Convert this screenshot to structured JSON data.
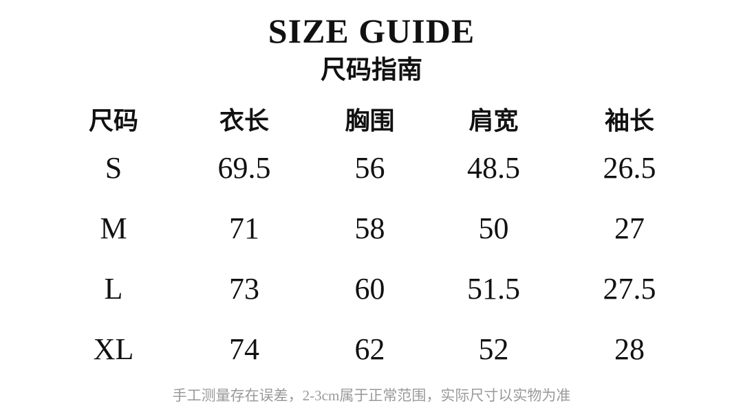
{
  "chart_data": {
    "type": "table",
    "title": "SIZE GUIDE",
    "subtitle": "尺码指南",
    "columns": [
      "尺码",
      "衣长",
      "胸围",
      "肩宽",
      "袖长"
    ],
    "rows": [
      [
        "S",
        "69.5",
        "56",
        "48.5",
        "26.5"
      ],
      [
        "M",
        "71",
        "58",
        "50",
        "27"
      ],
      [
        "L",
        "73",
        "60",
        "51.5",
        "27.5"
      ],
      [
        "XL",
        "74",
        "62",
        "52",
        "28"
      ]
    ],
    "footnote": "手工测量存在误差，2-3cm属于正常范围，实际尺寸以实物为准"
  },
  "colors": {
    "background": "#ffffff",
    "text": "#111111",
    "footnote": "#999999"
  }
}
